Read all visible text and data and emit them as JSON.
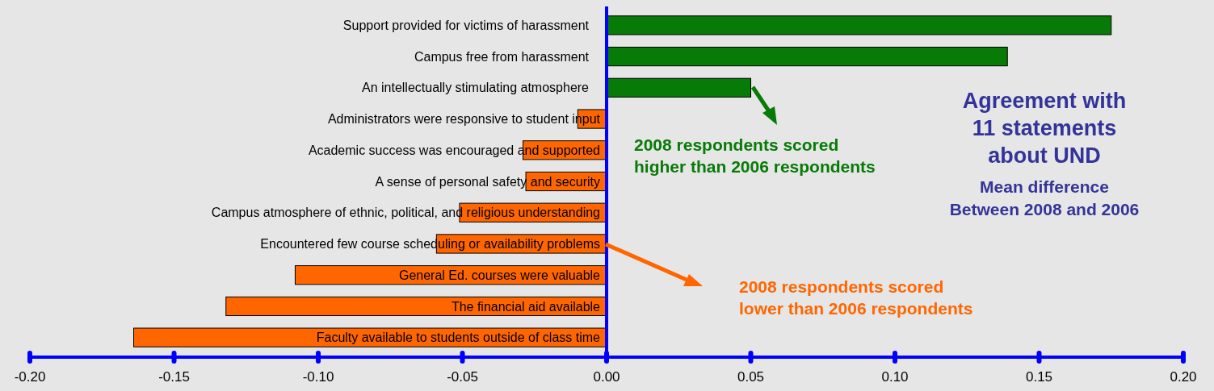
{
  "chart_data": {
    "type": "bar",
    "orientation": "horizontal",
    "title": "Agreement with\n11 statements\nabout UND",
    "subtitle": "Mean difference\nBetween 2008 and 2006",
    "categories": [
      "Support provided for victims of harassment",
      "Campus free from harassment",
      "An intellectually stimulating atmosphere",
      "Administrators were responsive to student input",
      "Academic success was encouraged and supported",
      "A sense of personal safety and security",
      "Campus atmosphere of ethnic, political, and religious understanding",
      "Encountered few course scheduling or  availability problems",
      "General Ed. courses were valuable",
      "The financial aid available",
      "Faculty available to students outside of class time"
    ],
    "values": [
      0.175,
      0.139,
      0.05,
      -0.01,
      -0.029,
      -0.028,
      -0.051,
      -0.059,
      -0.108,
      -0.132,
      -0.164
    ],
    "colors": [
      "#077a07",
      "#077a07",
      "#077a07",
      "#ff6600",
      "#ff6600",
      "#ff6600",
      "#ff6600",
      "#ff6600",
      "#ff6600",
      "#ff6600",
      "#ff6600"
    ],
    "xlim": [
      -0.2,
      0.2
    ],
    "xticks": [
      {
        "value": -0.2,
        "label": "-0.20"
      },
      {
        "value": -0.15,
        "label": "-0.15"
      },
      {
        "value": -0.1,
        "label": "-0.10"
      },
      {
        "value": -0.05,
        "label": "-0.05"
      },
      {
        "value": 0,
        "label": "0.00"
      },
      {
        "value": 0.05,
        "label": "0.05"
      },
      {
        "value": 0.1,
        "label": "0.10"
      },
      {
        "value": 0.15,
        "label": "0.15"
      },
      {
        "value": 0.2,
        "label": "0.20"
      }
    ],
    "annotations": [
      "2008 respondents scored\nhigher than 2006 respondents",
      "2008 respondents scored\nlower than 2006 respondents"
    ],
    "grid": false
  }
}
